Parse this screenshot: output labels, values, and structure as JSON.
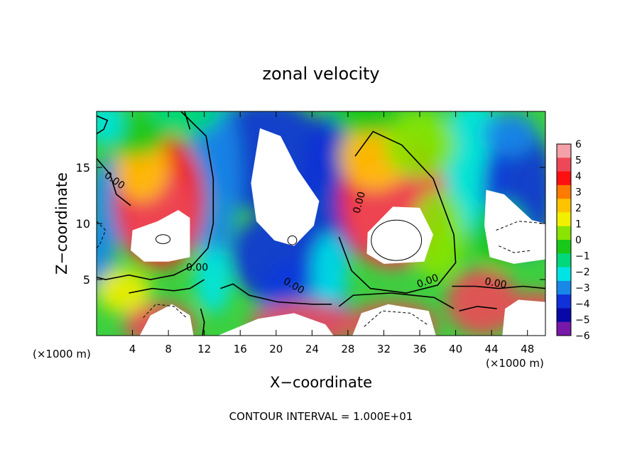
{
  "chart_data": {
    "type": "heatmap",
    "title": "zonal velocity",
    "xlabel": "X−coordinate",
    "ylabel": "Z−coordinate",
    "x_unit_left": "(×1000 m)",
    "x_unit_right": "(×1000 m)",
    "xlim": [
      0,
      50
    ],
    "ylim": [
      0,
      20
    ],
    "x_ticks": [
      4,
      8,
      12,
      16,
      20,
      24,
      28,
      32,
      36,
      40,
      44,
      48
    ],
    "x_tick_labels": [
      "4",
      "8",
      "12",
      "16",
      "20",
      "24",
      "28",
      "32",
      "36",
      "40",
      "44",
      "48"
    ],
    "y_ticks": [
      5,
      10,
      15
    ],
    "y_tick_labels": [
      "5",
      "10",
      "15"
    ],
    "footer": "CONTOUR INTERVAL = 1.000E+01",
    "colorbar": {
      "range": [
        -6,
        6
      ],
      "tick_labels": [
        "6",
        "5",
        "4",
        "3",
        "2",
        "1",
        "0",
        "−1",
        "−2",
        "−3",
        "−4",
        "−5",
        "−6"
      ],
      "colors": [
        "#f4a0a8",
        "#ee4858",
        "#ff1010",
        "#ff7a00",
        "#ffc400",
        "#f2f000",
        "#88e400",
        "#18c818",
        "#00d87a",
        "#00e4e4",
        "#1888e8",
        "#1030d8",
        "#0808a8",
        "#7818a8"
      ]
    },
    "contour_labels": [
      "0.00",
      "0.00",
      "0.00",
      "0.00",
      "0.00",
      "0.00"
    ]
  }
}
